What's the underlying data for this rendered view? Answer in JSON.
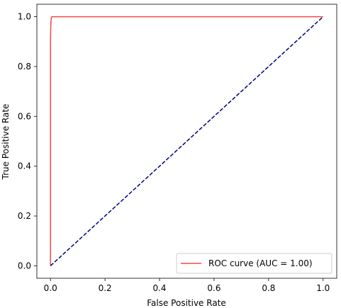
{
  "chart_data": {
    "type": "line",
    "title": "",
    "xlabel": "False Positive Rate",
    "ylabel": "True Positive Rate",
    "xlim": [
      -0.05,
      1.05
    ],
    "ylim": [
      -0.05,
      1.05
    ],
    "xticks": [
      0.0,
      0.2,
      0.4,
      0.6,
      0.8,
      1.0
    ],
    "yticks": [
      0.0,
      0.2,
      0.4,
      0.6,
      0.8,
      1.0
    ],
    "xtick_labels": [
      "0.0",
      "0.2",
      "0.4",
      "0.6",
      "0.8",
      "1.0"
    ],
    "ytick_labels": [
      "0.0",
      "0.2",
      "0.4",
      "0.6",
      "0.8",
      "1.0"
    ],
    "grid": false,
    "legend_position": "lower-right",
    "series": [
      {
        "name": "ROC curve (AUC = 1.00)",
        "color": "#f04a45",
        "style": "solid",
        "x": [
          0.0,
          0.0,
          0.001,
          0.002,
          0.003,
          0.005,
          1.0
        ],
        "y": [
          0.0,
          0.9,
          0.96,
          0.985,
          0.995,
          1.0,
          1.0
        ]
      },
      {
        "color": "#000080",
        "style": "dashed",
        "x": [
          0.0,
          1.0
        ],
        "y": [
          0.0,
          1.0
        ]
      }
    ]
  }
}
